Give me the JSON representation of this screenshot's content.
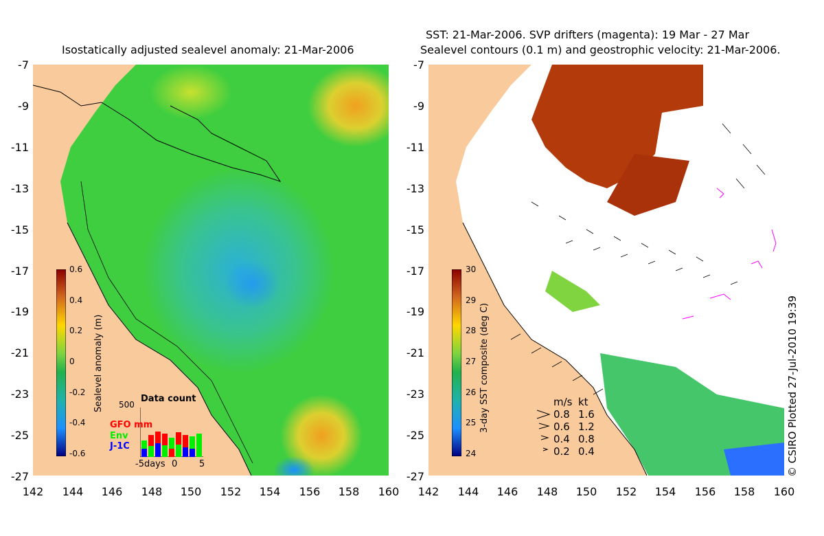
{
  "left_panel": {
    "title": "Isostatically adjusted sealevel anomaly: 21-Mar-2006",
    "colorbar": {
      "label": "Sealevel anomaly (m)",
      "ticks": [
        "0.6",
        "0.4",
        "0.2",
        "0",
        "-0.2",
        "-0.4",
        "-0.6"
      ]
    },
    "data_count": {
      "title": "Data count",
      "max_label": "500",
      "series": [
        {
          "name": "GFO mm",
          "color": "#ff0000"
        },
        {
          "name": "Env",
          "color": "#00ee00"
        },
        {
          "name": "J-1C",
          "color": "#0000ff"
        }
      ],
      "x_ticks": [
        "-5days",
        "0",
        "5"
      ]
    }
  },
  "right_panel": {
    "title_line1": "SST: 21-Mar-2006. SVP drifters (magenta): 19 Mar - 27 Mar",
    "title_line2": "Sealevel contours (0.1 m) and geostrophic velocity: 21-Mar-2006.",
    "colorbar": {
      "label": "3-day SST composite (deg C)",
      "ticks": [
        "30",
        "29",
        "28",
        "27",
        "26",
        "25",
        "24"
      ]
    },
    "velocity_legend": {
      "header_ms": "m/s",
      "header_kt": "kt",
      "rows": [
        {
          "ms": "0.8",
          "kt": "1.6"
        },
        {
          "ms": "0.6",
          "kt": "1.2"
        },
        {
          "ms": "0.4",
          "kt": "0.8"
        },
        {
          "ms": "0.2",
          "kt": "0.4"
        }
      ]
    }
  },
  "y_ticks": [
    "-7",
    "-9",
    "-11",
    "-13",
    "-15",
    "-17",
    "-19",
    "-21",
    "-23",
    "-25",
    "-27"
  ],
  "x_ticks": [
    "142",
    "144",
    "146",
    "148",
    "150",
    "152",
    "154",
    "156",
    "158",
    "160"
  ],
  "copyright": "© CSIRO Plotted 27-Jul-2010 19:39",
  "colors": {
    "land": "#f9cb9c",
    "sea_green": "#33cc33",
    "sst_warm": "#b33a0a",
    "drifter": "#ff00ff"
  }
}
